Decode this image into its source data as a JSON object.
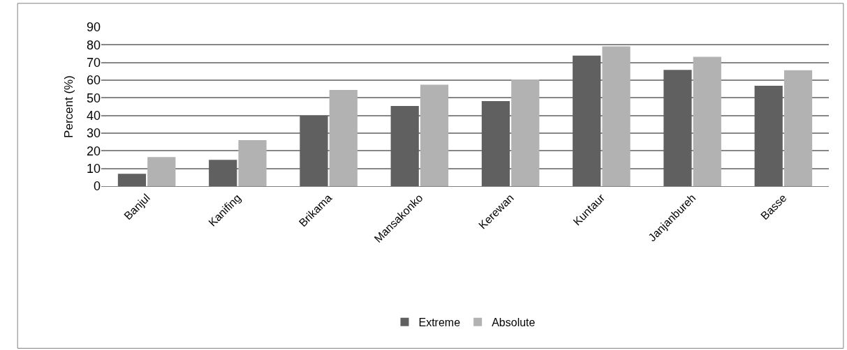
{
  "chart_data": {
    "type": "bar",
    "ylabel": "Percent (%)",
    "categories": [
      "Banjul",
      "Kanifing",
      "Brikama",
      "Mansakonko",
      "Kerewan",
      "Kuntaur",
      "Janjanbureh",
      "Basse"
    ],
    "series": [
      {
        "name": "Extreme",
        "color": "#606060",
        "values": [
          7.0,
          14.9,
          40.0,
          45.4,
          48.2,
          73.9,
          65.8,
          56.8
        ]
      },
      {
        "name": "Absolute",
        "color": "#b2b2b2",
        "values": [
          16.5,
          26.1,
          54.5,
          57.4,
          60.4,
          79.1,
          73.2,
          65.6
        ]
      }
    ],
    "ylim": [
      0,
      90
    ],
    "yticks": [
      0,
      10,
      20,
      30,
      40,
      50,
      60,
      70,
      80,
      90
    ],
    "grid": "y",
    "legend": "bottom"
  }
}
